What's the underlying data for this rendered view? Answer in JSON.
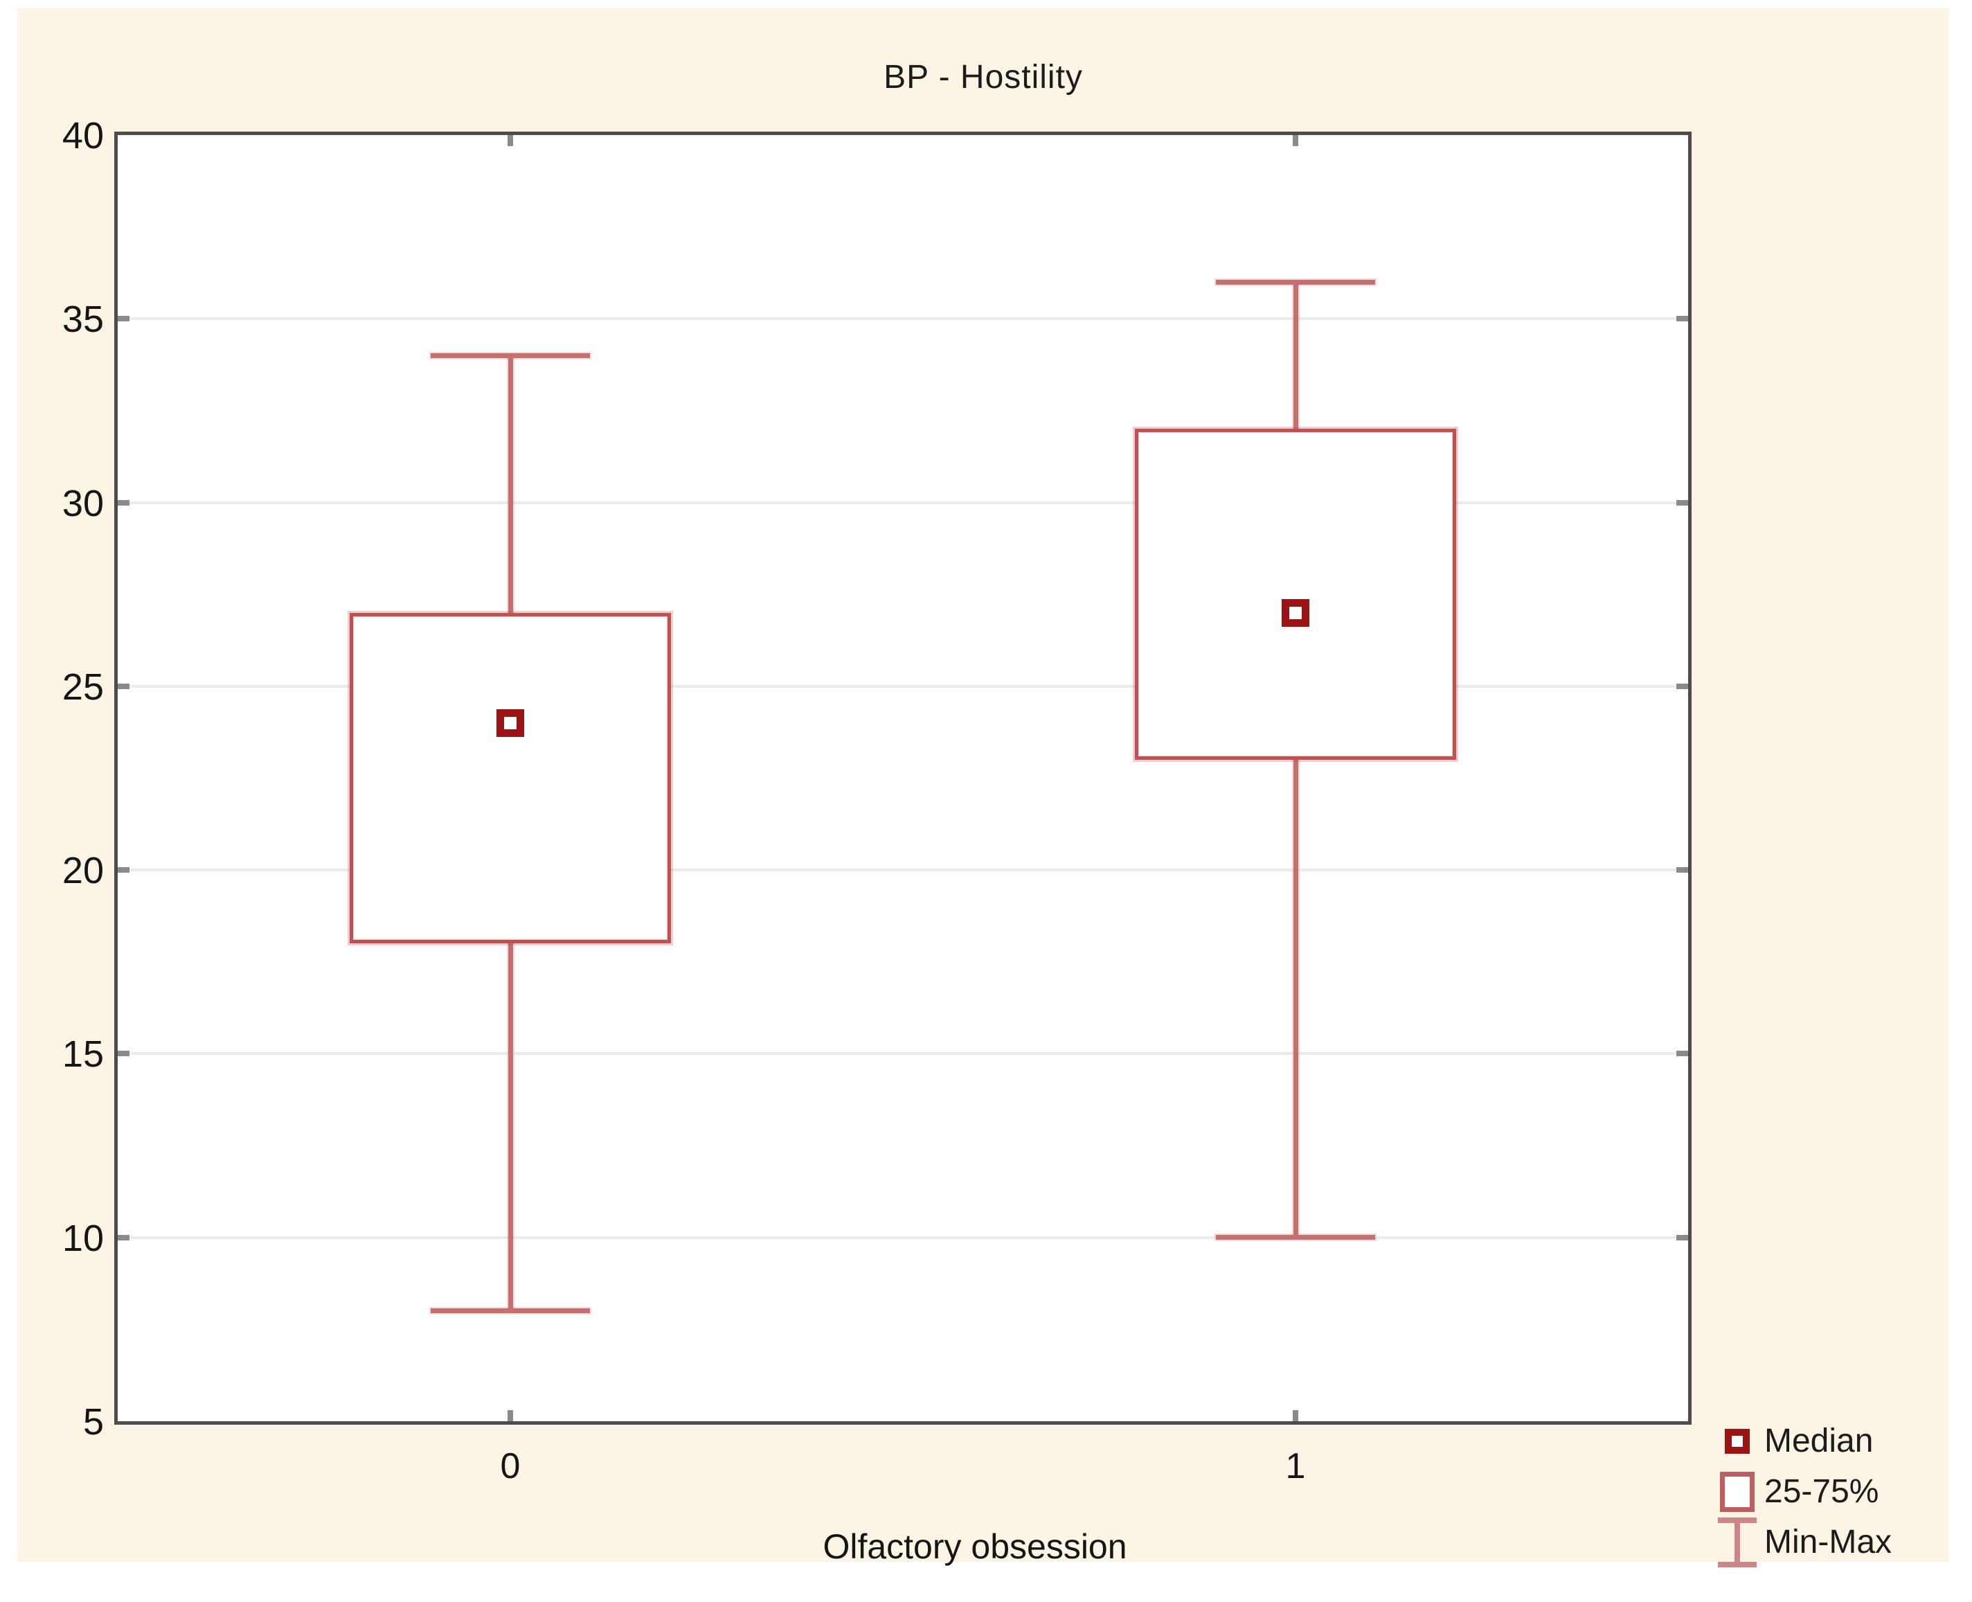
{
  "title": "BP - Hostility",
  "x_axis": {
    "label": "Olfactory obsession",
    "categories": [
      "0",
      "1"
    ]
  },
  "y_axis": {
    "ticks": [
      40,
      35,
      30,
      25,
      20,
      15,
      10,
      5
    ],
    "min": 5,
    "max": 40
  },
  "legend": {
    "items": [
      {
        "glyph": "median-square-icon",
        "label": "Median"
      },
      {
        "glyph": "iqr-box-icon",
        "label": "25-75%"
      },
      {
        "glyph": "min-max-whisker-icon",
        "label": "Min-Max"
      }
    ]
  },
  "colors": {
    "canvas_background": "#fcf4e5",
    "plot_background": "#ffffff",
    "frame": "#4d4d4d",
    "gridline": "#ebebeb",
    "box_border": "#be5151",
    "whisker": "#c47070",
    "median_marker": "#9c1313",
    "text": "#1c1c1c"
  },
  "chart_data": {
    "type": "boxplot",
    "title": "BP - Hostility",
    "xlabel": "Olfactory obsession",
    "ylabel": "",
    "categories": [
      "0",
      "1"
    ],
    "series": [
      {
        "name": "0",
        "min": 8,
        "q1": 18,
        "median": 24,
        "q3": 27,
        "max": 34
      },
      {
        "name": "1",
        "min": 10,
        "q1": 23,
        "median": 27,
        "q3": 32,
        "max": 36
      }
    ],
    "ylim": [
      5,
      40
    ],
    "y_tick_step": 5,
    "grid": "horizontal",
    "whisker_type": "min-max",
    "box_type": "25-75-percentile",
    "legend_position": "bottom-right-outside",
    "legend_entries": [
      "Median",
      "25-75%",
      "Min-Max"
    ]
  }
}
